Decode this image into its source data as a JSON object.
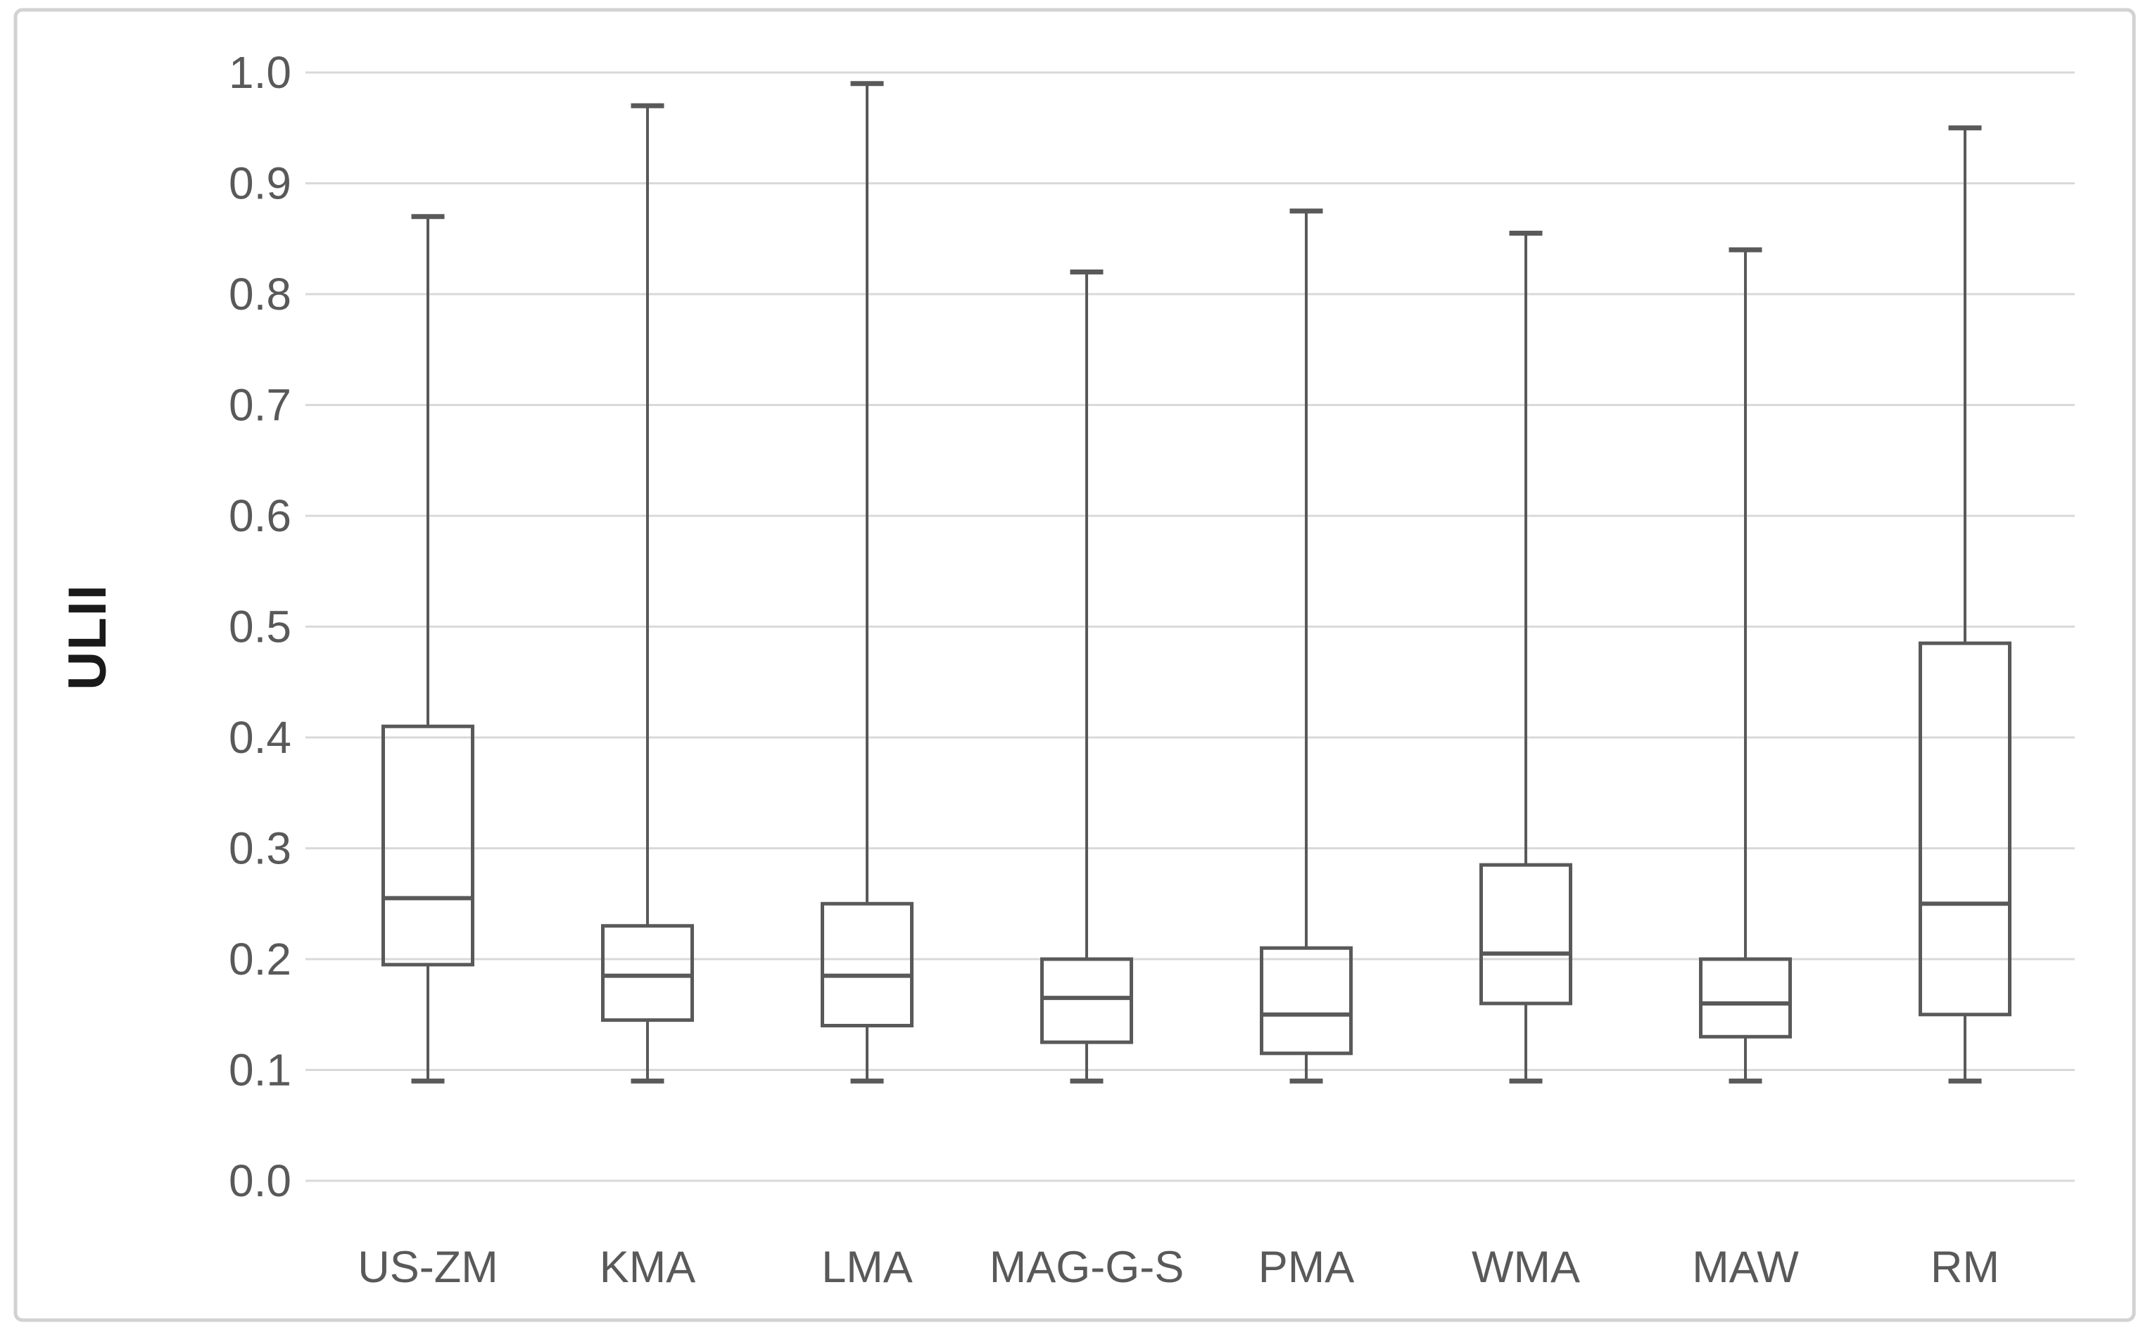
{
  "figure": {
    "background": "#ffffff",
    "frame_color": "#d2d2d2"
  },
  "chart_data": {
    "type": "boxplot",
    "title": "",
    "xlabel": "",
    "ylabel": "ULII",
    "ylim": [
      0.0,
      1.0
    ],
    "ytick_step": 0.1,
    "ytick_labels": [
      "0.0",
      "0.1",
      "0.2",
      "0.3",
      "0.4",
      "0.5",
      "0.6",
      "0.7",
      "0.8",
      "0.9",
      "1.0"
    ],
    "grid": true,
    "legend": false,
    "categories": [
      "US-ZM",
      "KMA",
      "LMA",
      "MAG-G-S",
      "PMA",
      "WMA",
      "MAW",
      "RM"
    ],
    "series": [
      {
        "category": "US-ZM",
        "whisker_low": 0.09,
        "q1": 0.195,
        "median": 0.255,
        "q3": 0.41,
        "whisker_high": 0.87
      },
      {
        "category": "KMA",
        "whisker_low": 0.09,
        "q1": 0.145,
        "median": 0.185,
        "q3": 0.23,
        "whisker_high": 0.97
      },
      {
        "category": "LMA",
        "whisker_low": 0.09,
        "q1": 0.14,
        "median": 0.185,
        "q3": 0.25,
        "whisker_high": 0.99
      },
      {
        "category": "MAG-G-S",
        "whisker_low": 0.09,
        "q1": 0.125,
        "median": 0.165,
        "q3": 0.2,
        "whisker_high": 0.82
      },
      {
        "category": "PMA",
        "whisker_low": 0.09,
        "q1": 0.115,
        "median": 0.15,
        "q3": 0.21,
        "whisker_high": 0.875
      },
      {
        "category": "WMA",
        "whisker_low": 0.09,
        "q1": 0.16,
        "median": 0.205,
        "q3": 0.285,
        "whisker_high": 0.855
      },
      {
        "category": "MAW",
        "whisker_low": 0.09,
        "q1": 0.13,
        "median": 0.16,
        "q3": 0.2,
        "whisker_high": 0.84
      },
      {
        "category": "RM",
        "whisker_low": 0.09,
        "q1": 0.15,
        "median": 0.25,
        "q3": 0.485,
        "whisker_high": 0.95
      }
    ],
    "colors": {
      "box_stroke": "#595959",
      "whisker_stroke": "#595959",
      "gridline": "#d9d9d9",
      "tick_label": "#595959",
      "category_label": "#595959",
      "axis_title": "#1a1a1a"
    }
  }
}
